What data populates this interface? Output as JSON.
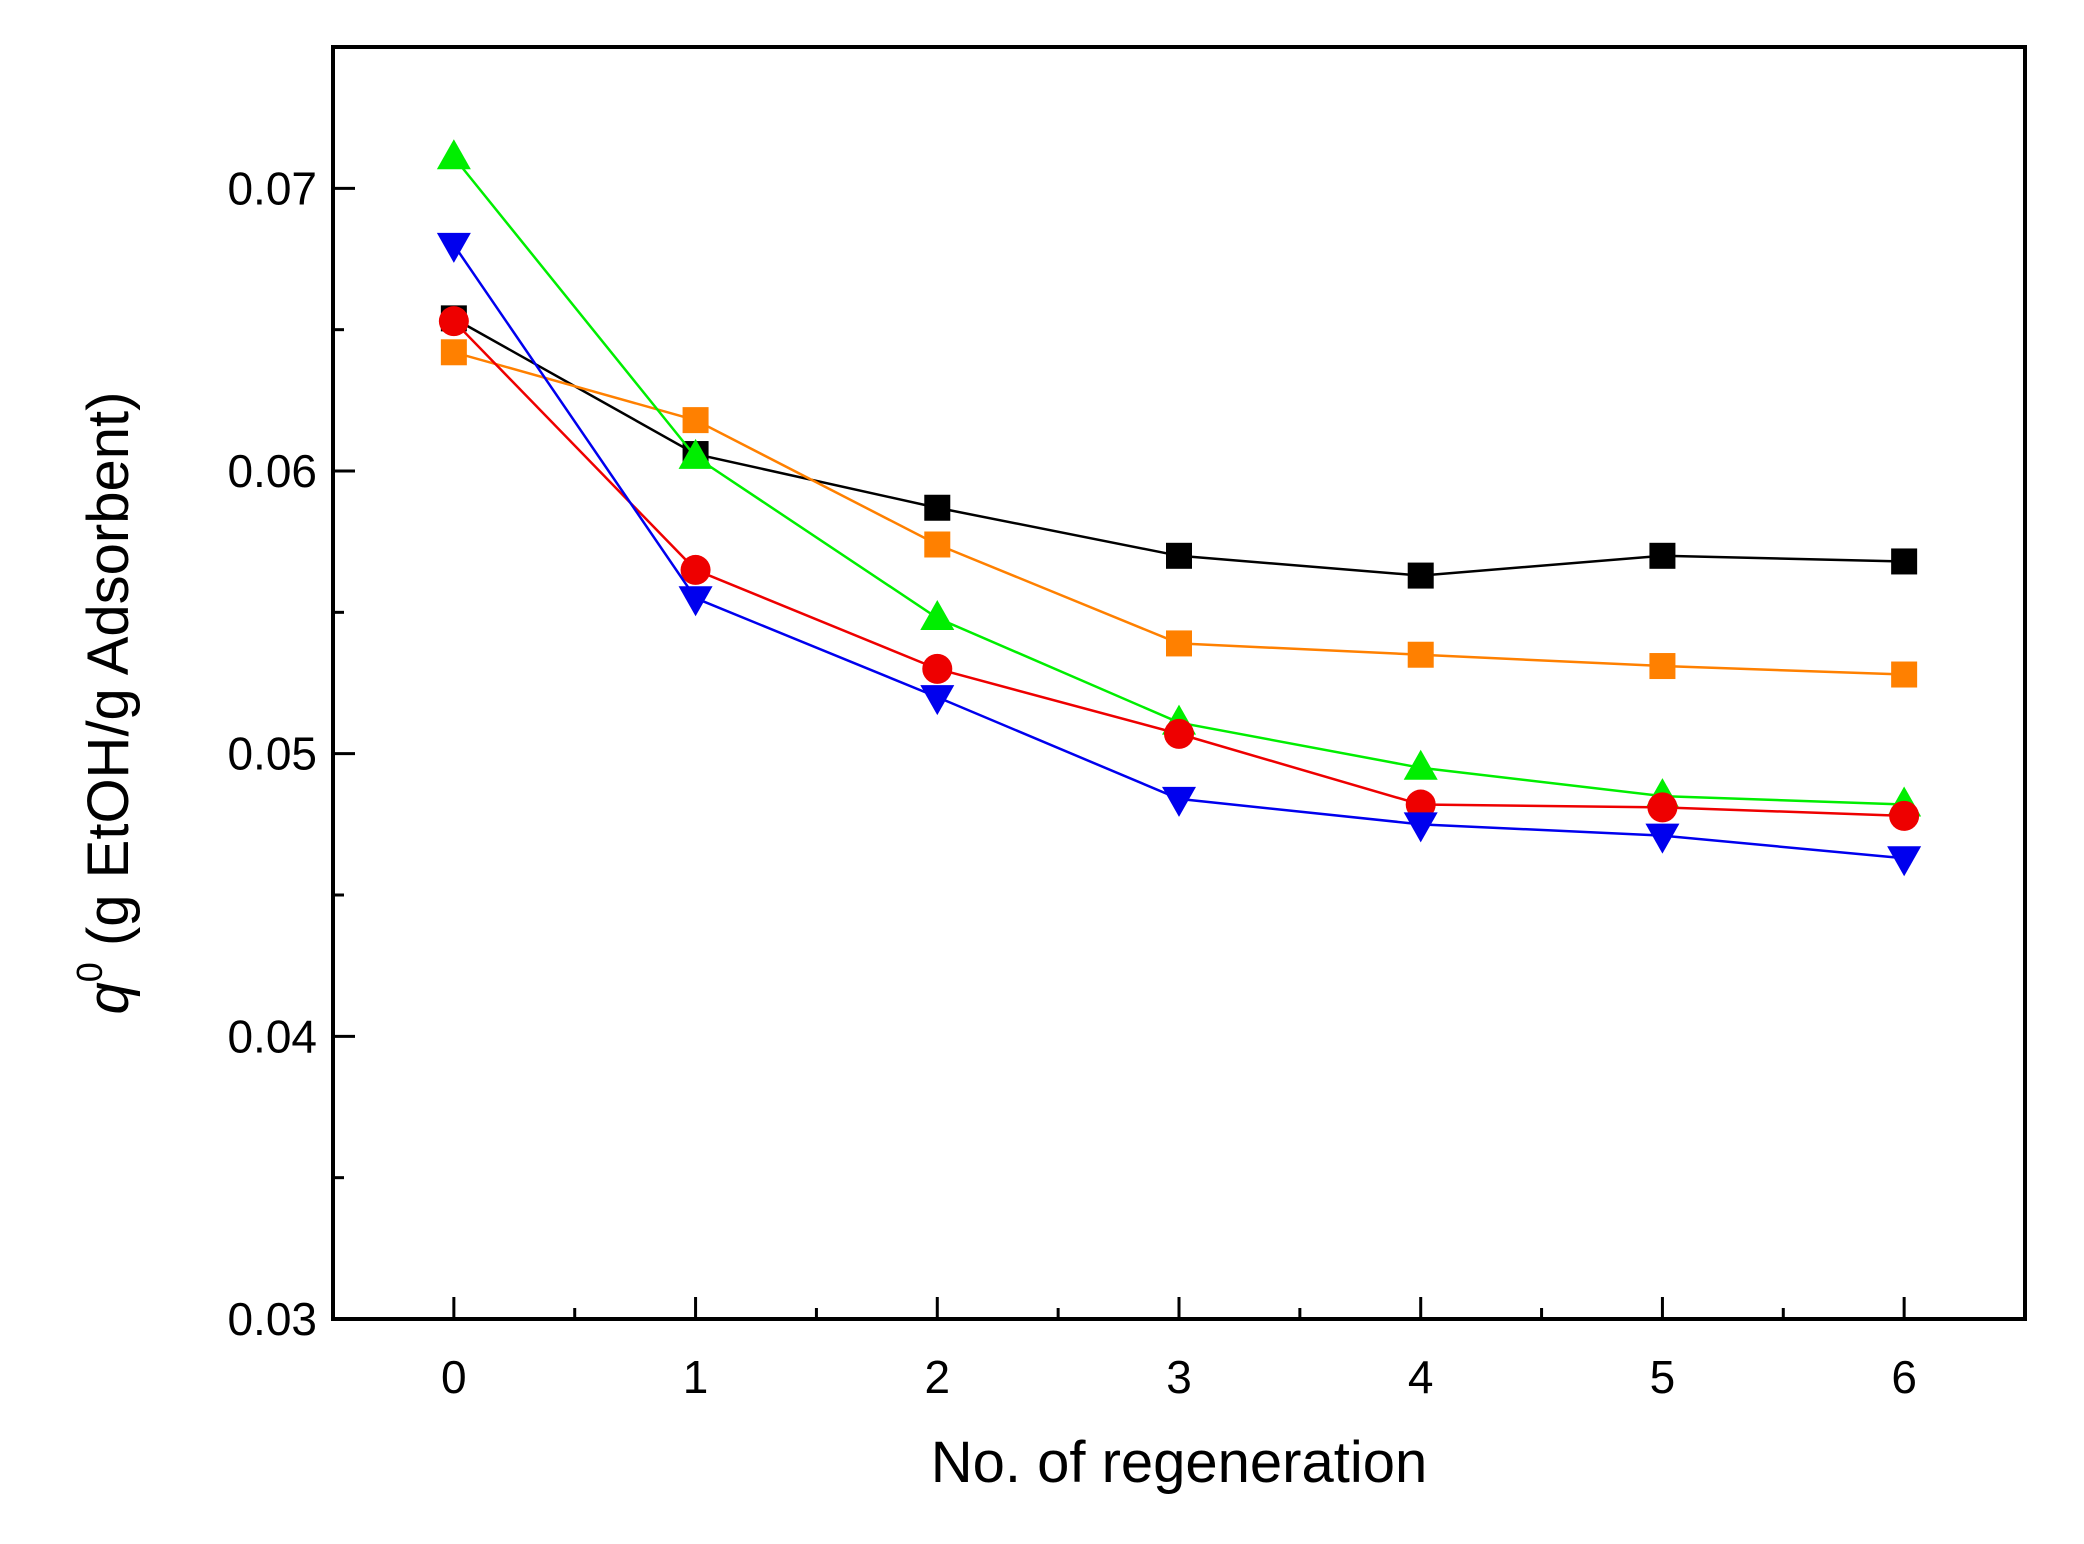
{
  "chart_data": {
    "type": "line",
    "title": "",
    "xlabel": "No. of regeneration",
    "ylabel_symbol": "q",
    "ylabel_superscript": "0",
    "ylabel_rest": " (g EtOH/g Adsorbent)",
    "x": [
      0,
      1,
      2,
      3,
      4,
      5,
      6
    ],
    "xlim": [
      -0.5,
      6.5
    ],
    "ylim": [
      0.03,
      0.075
    ],
    "xticks": [
      0,
      1,
      2,
      3,
      4,
      5,
      6
    ],
    "xtick_labels": [
      "0",
      "1",
      "2",
      "3",
      "4",
      "5",
      "6"
    ],
    "yticks": [
      0.03,
      0.04,
      0.05,
      0.06,
      0.07
    ],
    "ytick_labels": [
      "0.03",
      "0.04",
      "0.05",
      "0.06",
      "0.07"
    ],
    "grid": false,
    "series": [
      {
        "name": "black-square",
        "color": "#000000",
        "marker": "square",
        "values": [
          0.0654,
          0.0606,
          0.0587,
          0.057,
          0.0563,
          0.057,
          0.0568
        ]
      },
      {
        "name": "orange-square",
        "color": "#ff8000",
        "marker": "square",
        "values": [
          0.0642,
          0.0618,
          0.0574,
          0.0539,
          0.0535,
          0.0531,
          0.0528
        ]
      },
      {
        "name": "green-triangle",
        "color": "#00ee00",
        "marker": "triangle-up",
        "values": [
          0.0711,
          0.0605,
          0.0548,
          0.0511,
          0.0495,
          0.0485,
          0.0482
        ]
      },
      {
        "name": "red-circle",
        "color": "#ee0000",
        "marker": "circle",
        "values": [
          0.0653,
          0.0565,
          0.053,
          0.0507,
          0.0482,
          0.0481,
          0.0478
        ]
      },
      {
        "name": "blue-triangle",
        "color": "#0000ee",
        "marker": "triangle-down",
        "values": [
          0.068,
          0.0555,
          0.052,
          0.0484,
          0.0475,
          0.0471,
          0.0463
        ]
      }
    ]
  }
}
